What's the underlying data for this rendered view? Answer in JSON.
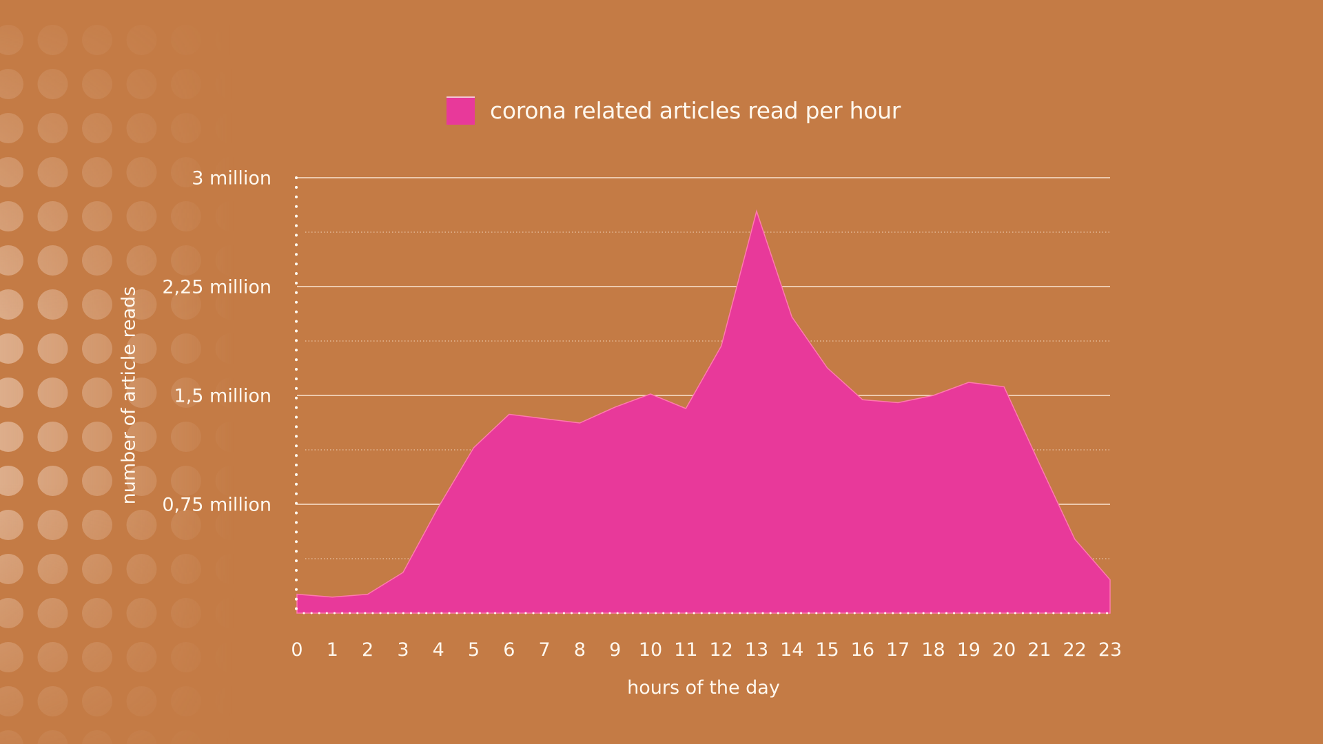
{
  "colors": {
    "background": "#C47B45",
    "area_fill": "#E8399A",
    "area_stroke": "#FF7AAE",
    "text": "#FFF8EE",
    "grid": "#FFF1E0"
  },
  "legend": {
    "label": "corona related articles read per hour",
    "swatch_color": "#E8399A"
  },
  "axes": {
    "y_title": "number of article reads",
    "x_title": "hours of the day",
    "y_ticks": [
      "3 million",
      "2,25 million",
      "1,5 million",
      "0,75 million"
    ],
    "x_ticks": [
      "0",
      "1",
      "2",
      "3",
      "4",
      "5",
      "6",
      "7",
      "8",
      "9",
      "10",
      "11",
      "12",
      "13",
      "14",
      "15",
      "16",
      "17",
      "18",
      "19",
      "20",
      "21",
      "22",
      "23"
    ]
  },
  "chart_data": {
    "type": "area",
    "title": "",
    "legend": [
      "corona related articles read per hour"
    ],
    "legend_position": "top",
    "xlabel": "hours of the day",
    "ylabel": "number of article reads",
    "x": [
      0,
      1,
      2,
      3,
      4,
      5,
      6,
      7,
      8,
      9,
      10,
      11,
      12,
      13,
      14,
      15,
      16,
      17,
      18,
      19,
      20,
      21,
      22,
      23
    ],
    "series": [
      {
        "name": "corona related articles read per hour",
        "values": [
          0.13,
          0.11,
          0.13,
          0.28,
          0.73,
          1.14,
          1.37,
          1.34,
          1.31,
          1.42,
          1.51,
          1.41,
          1.84,
          2.77,
          2.04,
          1.69,
          1.47,
          1.45,
          1.5,
          1.59,
          1.56,
          1.03,
          0.51,
          0.23
        ],
        "unit": "million"
      }
    ],
    "ylim": [
      0,
      3
    ],
    "y_major_ticks": [
      0.75,
      1.5,
      2.25,
      3
    ],
    "y_minor_ticks": [
      0.375,
      1.125,
      1.875,
      2.625
    ],
    "y_tick_labels": [
      "0,75 million",
      "1,5 million",
      "2,25 million",
      "3 million"
    ],
    "grid": true
  }
}
